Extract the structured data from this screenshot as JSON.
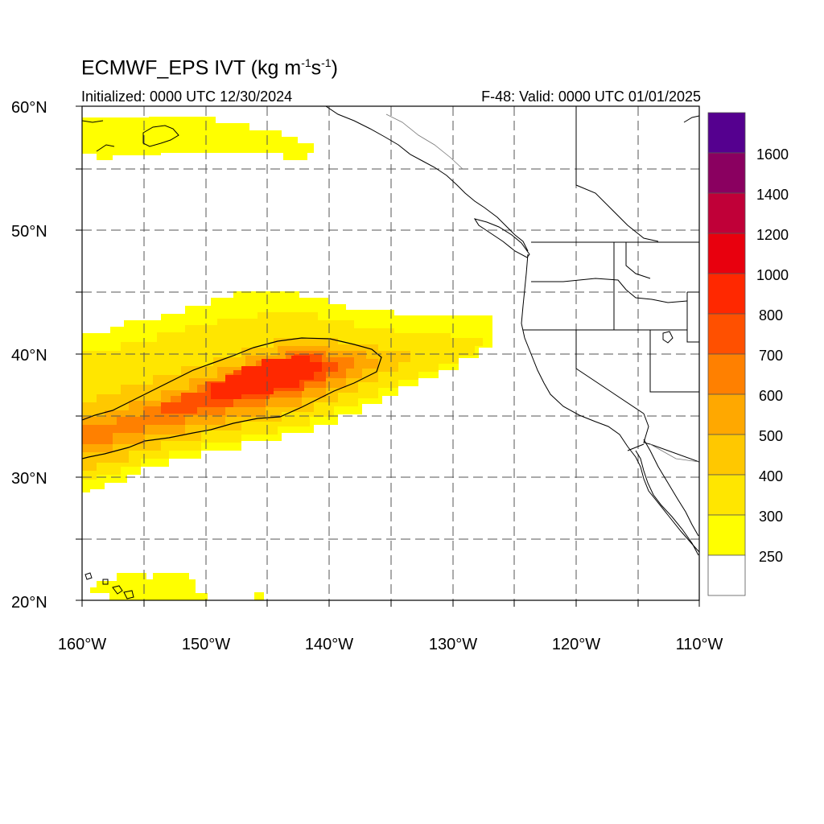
{
  "title": {
    "main": "ECMWF_EPS IVT (kg m",
    "sup1": "-1",
    "mid": "s",
    "sup2": "-1",
    "end": ")"
  },
  "initialized": "Initialized: 0000 UTC 12/30/2024",
  "valid": "F-48: Valid: 0000 UTC 01/01/2025",
  "map": {
    "lat_labels": [
      "60°N",
      "50°N",
      "40°N",
      "30°N",
      "20°N"
    ],
    "lon_labels": [
      "160°W",
      "150°W",
      "140°W",
      "130°W",
      "120°W",
      "110°W"
    ],
    "lon_range": [
      -160,
      -110
    ],
    "lat_range": [
      20,
      60
    ],
    "gridlines": "dashed every 5°"
  },
  "colorbar": {
    "labels": [
      "1600",
      "1400",
      "1200",
      "1000",
      "800",
      "700",
      "600",
      "500",
      "400",
      "300",
      "250"
    ],
    "levels": [
      250,
      300,
      400,
      500,
      600,
      700,
      800,
      1000,
      1200,
      1400,
      1600
    ],
    "colors": [
      "#ffffff",
      "#ffff00",
      "#ffe600",
      "#ffc800",
      "#ffa800",
      "#ff8000",
      "#ff5000",
      "#ff2800",
      "#e8000e",
      "#c00038",
      "#8a0060",
      "#55008f"
    ]
  },
  "ivt_features": [
    {
      "name": "atmospheric river",
      "core_max_range": "800-1000",
      "location": "~32-42°N, 160-127°W"
    },
    {
      "name": "Alaska Peninsula band",
      "range": "250-300"
    },
    {
      "name": "near Hawaii",
      "range": "250-300"
    }
  ]
}
